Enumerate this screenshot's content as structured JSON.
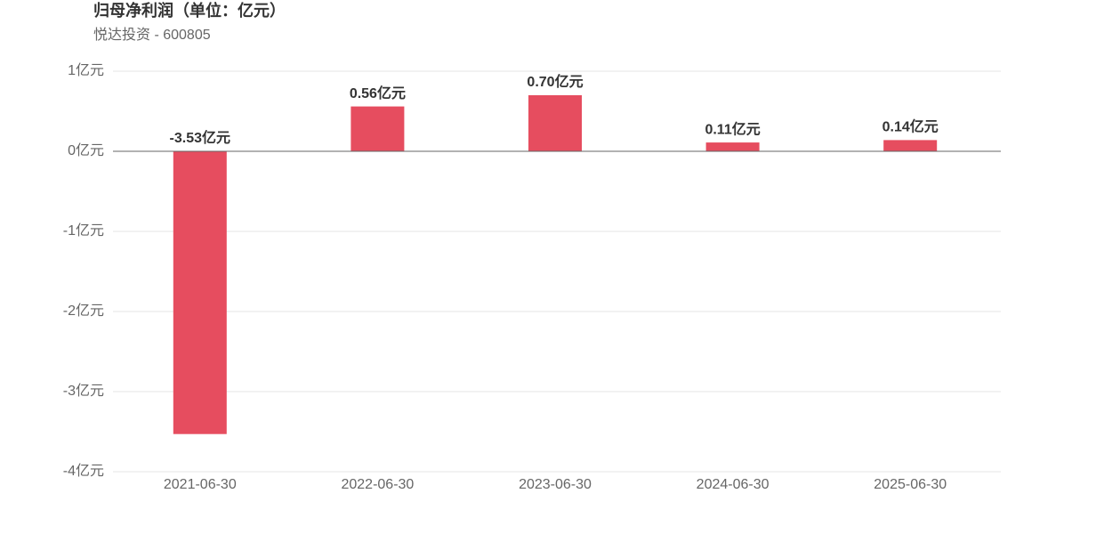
{
  "chart_data": {
    "type": "bar",
    "title": "归母净利润（单位：亿元）",
    "subtitle": "悦达投资 - 600805",
    "categories": [
      "2021-06-30",
      "2022-06-30",
      "2023-06-30",
      "2024-06-30",
      "2025-06-30"
    ],
    "values": [
      -3.53,
      0.56,
      0.7,
      0.11,
      0.14
    ],
    "value_labels": [
      "-3.53亿元",
      "0.56亿元",
      "0.70亿元",
      "0.11亿元",
      "0.14亿元"
    ],
    "color": "#e64d5f",
    "ylim": [
      -4,
      1
    ],
    "yticks": [
      {
        "value": 1,
        "label": "1亿元"
      },
      {
        "value": 0,
        "label": "0亿元"
      },
      {
        "value": -1,
        "label": "-1亿元"
      },
      {
        "value": -2,
        "label": "-2亿元"
      },
      {
        "value": -3,
        "label": "-3亿元"
      },
      {
        "value": -4,
        "label": "-4亿元"
      }
    ],
    "grid": true
  }
}
